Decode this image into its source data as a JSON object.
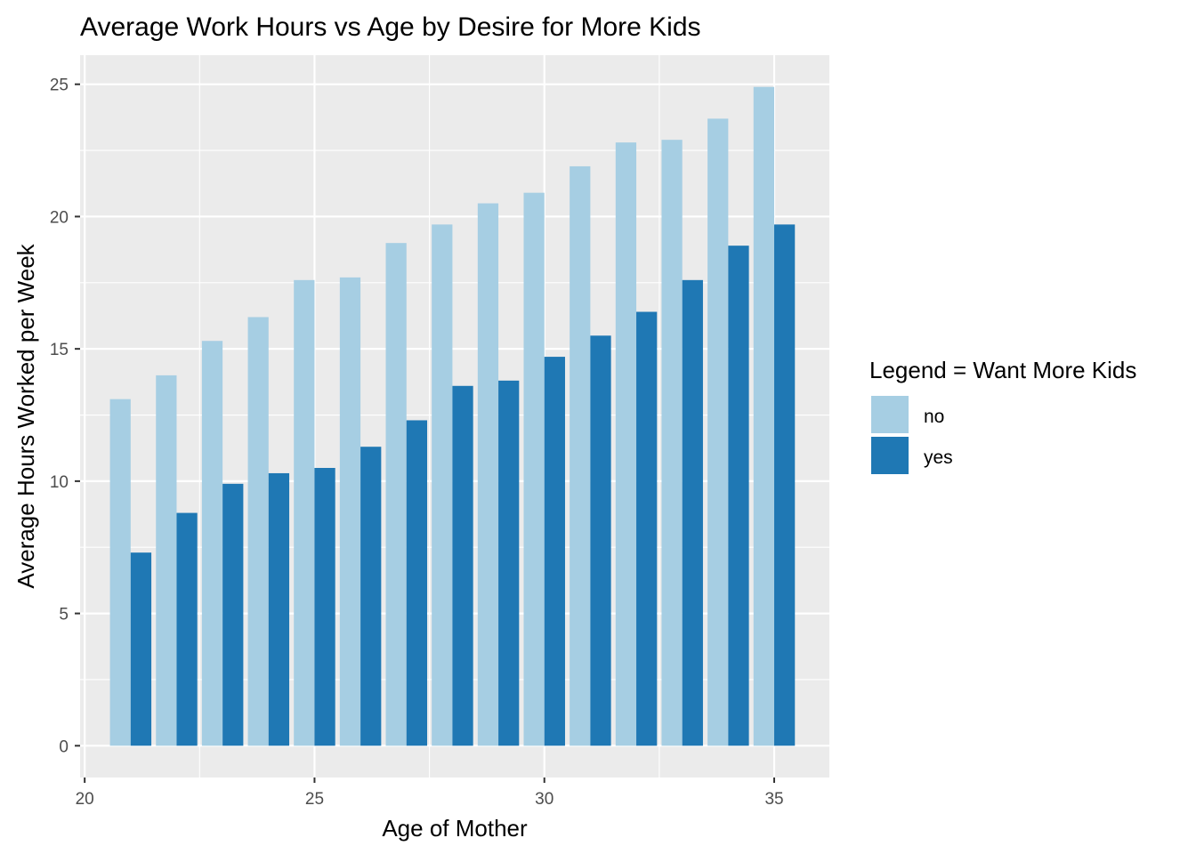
{
  "chart_data": {
    "type": "bar",
    "title": "Average Work Hours vs Age by Desire for More Kids",
    "xlabel": "Age of Mother",
    "ylabel": "Average Hours Worked per Week",
    "xlim": [
      19.9,
      36.2
    ],
    "ylim": [
      -1.2,
      26.1
    ],
    "x_ticks": [
      20,
      25,
      30,
      35
    ],
    "y_ticks": [
      0,
      5,
      10,
      15,
      20,
      25
    ],
    "categories": [
      21,
      22,
      23,
      24,
      25,
      26,
      27,
      28,
      29,
      30,
      31,
      32,
      33,
      34,
      35
    ],
    "bar_group_width": 0.9,
    "series": [
      {
        "name": "no",
        "color": "#a6cee3",
        "values": [
          13.1,
          14.0,
          15.3,
          16.2,
          17.6,
          17.7,
          19.0,
          19.7,
          20.5,
          20.9,
          21.9,
          22.8,
          22.9,
          23.7,
          24.9
        ]
      },
      {
        "name": "yes",
        "color": "#1f78b4",
        "values": [
          7.3,
          8.8,
          9.9,
          10.3,
          10.5,
          11.3,
          12.3,
          13.6,
          13.8,
          14.7,
          15.5,
          16.4,
          17.6,
          18.9,
          19.7
        ]
      }
    ],
    "legend": {
      "title": "Legend = Want More Kids",
      "position": "right"
    },
    "grid": true,
    "panel_background": "#ebebeb"
  }
}
